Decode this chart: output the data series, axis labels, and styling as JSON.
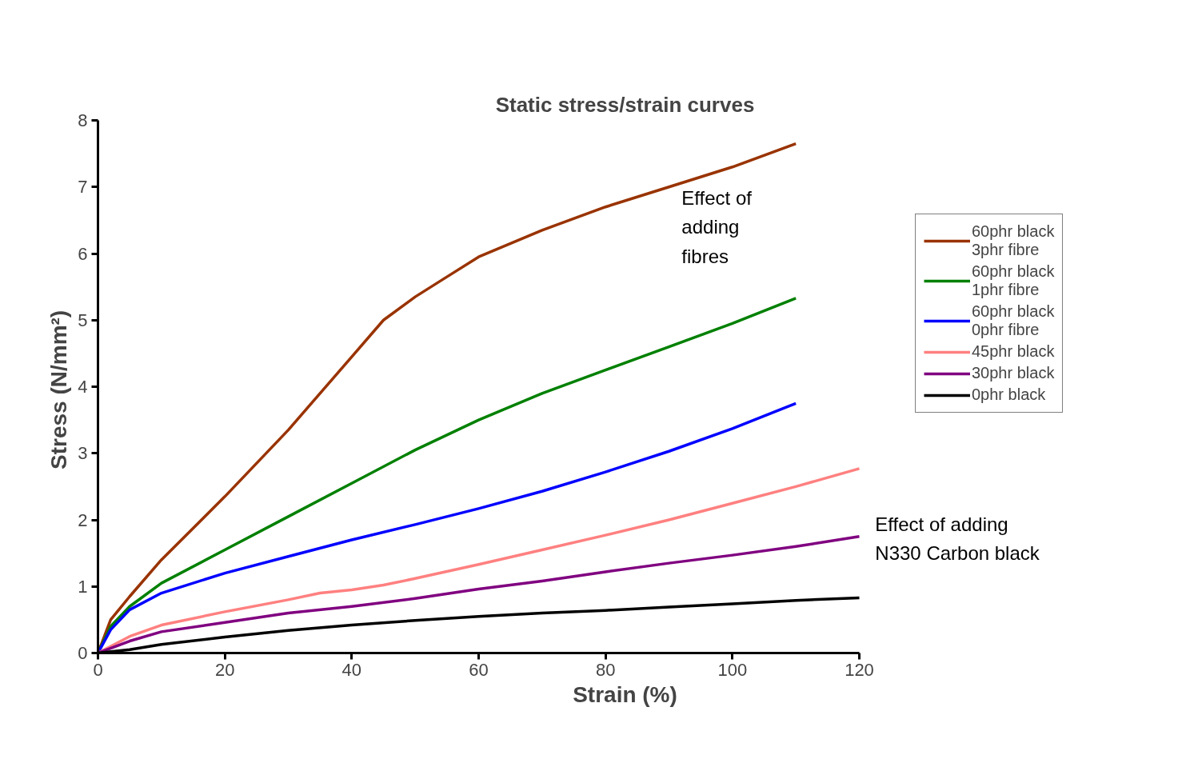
{
  "chart_data": {
    "type": "line",
    "title": "Static stress/strain curves",
    "xlabel": "Strain (%)",
    "ylabel": "Stress  (N/mm²)",
    "xlim": [
      0,
      120
    ],
    "ylim": [
      0,
      8
    ],
    "xticks": [
      0,
      20,
      40,
      60,
      80,
      100,
      120
    ],
    "yticks": [
      0,
      1,
      2,
      3,
      4,
      5,
      6,
      7,
      8
    ],
    "grid": false,
    "legend": "right",
    "marker": "none",
    "line_style": "solid",
    "annotations": [
      "Effect of\nadding\nfibres",
      "Effect of adding\nN330 Carbon black"
    ],
    "series": [
      {
        "name": "60phr black\n3phr fibre",
        "color": "#993300",
        "x": [
          0,
          2,
          5,
          10,
          20,
          30,
          40,
          45,
          50,
          55,
          60,
          70,
          80,
          90,
          100,
          110
        ],
        "values": [
          0,
          0.5,
          0.85,
          1.4,
          2.35,
          3.35,
          4.45,
          5.0,
          5.35,
          5.65,
          5.95,
          6.35,
          6.7,
          7.0,
          7.3,
          7.65
        ]
      },
      {
        "name": "60phr black\n1phr fibre",
        "color": "#008000",
        "x": [
          0,
          2,
          5,
          10,
          20,
          30,
          40,
          50,
          60,
          70,
          80,
          90,
          100,
          110
        ],
        "values": [
          0,
          0.4,
          0.7,
          1.05,
          1.55,
          2.05,
          2.55,
          3.05,
          3.5,
          3.9,
          4.25,
          4.6,
          4.95,
          5.33
        ]
      },
      {
        "name": "60phr black\n0phr fibre",
        "color": "#0000ff",
        "x": [
          0,
          2,
          5,
          10,
          20,
          30,
          40,
          50,
          60,
          70,
          80,
          90,
          100,
          110
        ],
        "values": [
          0,
          0.35,
          0.65,
          0.9,
          1.2,
          1.45,
          1.7,
          1.93,
          2.17,
          2.43,
          2.72,
          3.03,
          3.37,
          3.75
        ]
      },
      {
        "name": "45phr black",
        "color": "#ff8080",
        "x": [
          0,
          5,
          10,
          20,
          30,
          35,
          40,
          45,
          50,
          60,
          70,
          80,
          90,
          100,
          110,
          120
        ],
        "values": [
          0,
          0.25,
          0.42,
          0.62,
          0.8,
          0.9,
          0.95,
          1.02,
          1.12,
          1.33,
          1.55,
          1.77,
          2.0,
          2.25,
          2.5,
          2.77
        ]
      },
      {
        "name": "30phr black",
        "color": "#800080",
        "x": [
          0,
          5,
          10,
          20,
          30,
          40,
          50,
          60,
          70,
          80,
          90,
          100,
          110,
          120
        ],
        "values": [
          0,
          0.18,
          0.32,
          0.46,
          0.6,
          0.7,
          0.82,
          0.96,
          1.08,
          1.22,
          1.35,
          1.47,
          1.6,
          1.75
        ]
      },
      {
        "name": "0phr black",
        "color": "#000000",
        "x": [
          0,
          5,
          10,
          20,
          30,
          40,
          50,
          60,
          70,
          80,
          90,
          100,
          110,
          120
        ],
        "values": [
          0,
          0.05,
          0.13,
          0.24,
          0.34,
          0.42,
          0.49,
          0.55,
          0.6,
          0.64,
          0.69,
          0.74,
          0.79,
          0.83
        ]
      }
    ]
  }
}
